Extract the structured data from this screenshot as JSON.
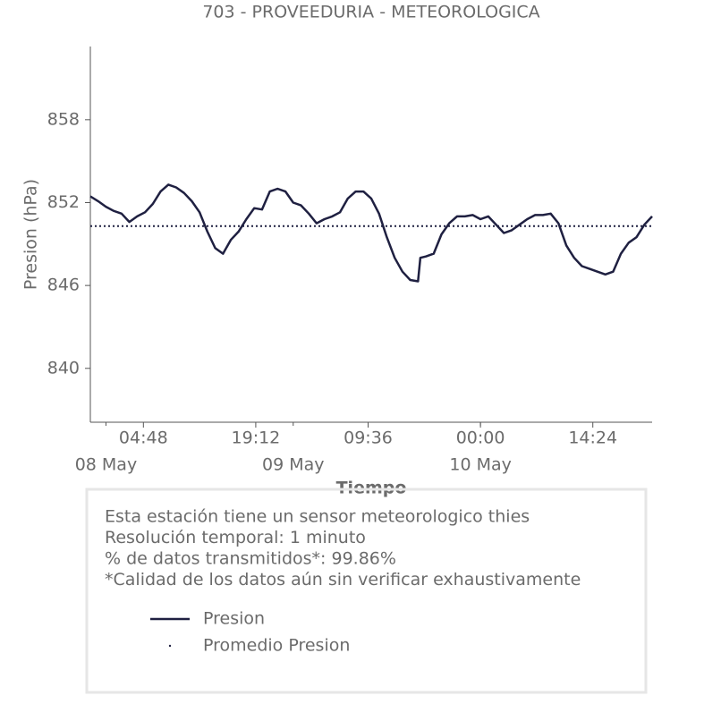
{
  "chart_data": {
    "type": "line",
    "title": "703 - PROVEEDURIA - METEOROLOGICA",
    "ylabel": "Presion (hPa)",
    "xlabel": "Tiempo",
    "x": [
      "07 May 22:00",
      "07 May 23:00",
      "08 May 00:00",
      "08 May 01:00",
      "08 May 02:00",
      "08 May 03:00",
      "08 May 04:00",
      "08 May 05:00",
      "08 May 06:00",
      "08 May 07:00",
      "08 May 08:00",
      "08 May 09:00",
      "08 May 10:00",
      "08 May 11:00",
      "08 May 12:00",
      "08 May 13:00",
      "08 May 14:00",
      "08 May 15:00",
      "08 May 16:00",
      "08 May 17:00",
      "08 May 18:00",
      "08 May 19:00",
      "08 May 20:00",
      "08 May 21:00",
      "08 May 22:00",
      "08 May 23:00",
      "09 May 00:00",
      "09 May 01:00",
      "09 May 02:00",
      "09 May 03:00",
      "09 May 04:00",
      "09 May 05:00",
      "09 May 06:00",
      "09 May 07:00",
      "09 May 08:00",
      "09 May 09:00",
      "09 May 10:00",
      "09 May 11:00",
      "09 May 12:00",
      "09 May 13:00",
      "09 May 14:00",
      "09 May 15:00",
      "09 May 16:00",
      "09 May 16:18",
      "09 May 17:00",
      "09 May 18:00",
      "09 May 19:00",
      "09 May 20:00",
      "09 May 21:00",
      "09 May 22:00",
      "09 May 23:00",
      "10 May 00:00",
      "10 May 01:00",
      "10 May 02:00",
      "10 May 03:00",
      "10 May 04:00",
      "10 May 05:00",
      "10 May 06:00",
      "10 May 07:00",
      "10 May 08:00",
      "10 May 09:00",
      "10 May 10:00",
      "10 May 11:00",
      "10 May 12:00",
      "10 May 13:00",
      "10 May 14:00",
      "10 May 15:00",
      "10 May 16:00",
      "10 May 17:00",
      "10 May 18:00",
      "10 May 19:00",
      "10 May 20:00",
      "10 May 21:00",
      "10 May 22:00"
    ],
    "series": [
      {
        "name": "Presion",
        "color": "#1f2041",
        "values": [
          852.45,
          852.1,
          851.7,
          851.4,
          851.2,
          850.6,
          851.0,
          851.3,
          851.9,
          852.8,
          853.3,
          853.1,
          852.7,
          852.1,
          851.3,
          849.9,
          848.7,
          848.3,
          849.3,
          849.9,
          850.8,
          851.6,
          851.5,
          852.8,
          853.0,
          852.8,
          852.0,
          851.8,
          851.2,
          850.5,
          850.8,
          851.0,
          851.3,
          852.3,
          852.8,
          852.8,
          852.3,
          851.2,
          849.5,
          848.0,
          847.0,
          846.4,
          846.3,
          848.0,
          848.1,
          848.3,
          849.7,
          850.5,
          851.0,
          851.0,
          851.1,
          850.8,
          851.0,
          850.4,
          849.8,
          850.0,
          850.4,
          850.8,
          851.1,
          851.1,
          851.2,
          850.5,
          848.9,
          848.0,
          847.4,
          847.2,
          847.0,
          846.8,
          847.0,
          848.3,
          849.1,
          849.5,
          850.4,
          851.0
        ]
      }
    ],
    "average": {
      "name": "Promedio Presion",
      "value": 850.3,
      "color": "#1f2041"
    },
    "ylim": [
      836.1,
      863.3
    ],
    "yticks": [
      840,
      846,
      852,
      858
    ],
    "xlim": [
      "07 May 22:00",
      "10 May 22:00"
    ],
    "xticks": [
      {
        "value": "08 May 04:48",
        "label": "04:48"
      },
      {
        "value": "08 May 19:12",
        "label": "19:12"
      },
      {
        "value": "09 May 09:36",
        "label": "09:36"
      },
      {
        "value": "10 May 00:00",
        "label": "00:00"
      },
      {
        "value": "10 May 14:24",
        "label": "14:24"
      }
    ],
    "xticks_minor": [
      {
        "value": "08 May 00:00",
        "label": "08 May"
      },
      {
        "value": "09 May 00:00",
        "label": "09 May"
      },
      {
        "value": "10 May 00:00",
        "label": "10 May"
      }
    ],
    "info": [
      "Esta estación tiene un sensor meteorologico thies",
      "Resolución temporal: 1 minuto",
      "% de datos transmitidos*: 99.86%",
      "*Calidad de los datos aún sin verificar exhaustivamente"
    ]
  }
}
